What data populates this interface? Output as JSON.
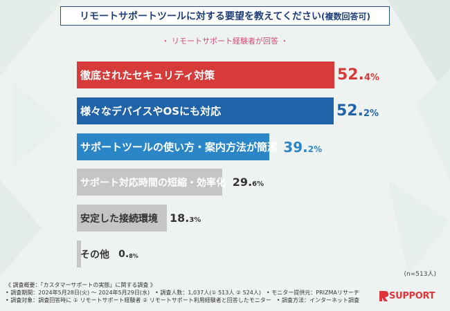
{
  "title": "リモートサポートツールに対する要望を教えてください",
  "title_suffix": "(複数回答可)",
  "subtitle": "・ リモートサポート経験者が回答 ・",
  "colors": {
    "red": "#d63b3a",
    "blue": "#1f63a8",
    "lightblue": "#2b86c8",
    "gray": "#c5c5c5"
  },
  "chart_data": {
    "type": "bar",
    "orientation": "horizontal",
    "categories": [
      "徹底されたセキュリティ対策",
      "様々なデバイスやOSにも対応",
      "サポートツールの使い方・案内方法が簡潔",
      "サポート対応時間の短縮・効率化",
      "安定した接続環境",
      "その他"
    ],
    "values": [
      52.4,
      52.2,
      39.2,
      29.6,
      18.3,
      0.8
    ],
    "value_labels": [
      {
        "int": "52.",
        "dec": "4%"
      },
      {
        "int": "52.",
        "dec": "2%"
      },
      {
        "int": "39.",
        "dec": "2%"
      },
      {
        "int": "29.",
        "dec": "6%"
      },
      {
        "int": "18.",
        "dec": "3%"
      },
      {
        "int": "0.",
        "dec": "8%"
      }
    ],
    "xlim": [
      0,
      52.4
    ]
  },
  "n_label": "(n=513人)",
  "footer": [
    "《 調査概要：「カスタマーサポートの実態」に関する調査 》",
    "• 調査期間：2024年5月28日(火) ～ 2024年5月29日(水)　• 調査人数：1,037人(① 513人 ② 524人)　• モニター提供元：PRIZMAリサーチ",
    "• 調査対象：調査回答時に ① リモートサポート経験者 ② リモートサポート利用経験者と回答したモニター　• 調査方法：インターネット調査"
  ],
  "logo": {
    "mark": "R",
    "text": "SUPPORT"
  }
}
